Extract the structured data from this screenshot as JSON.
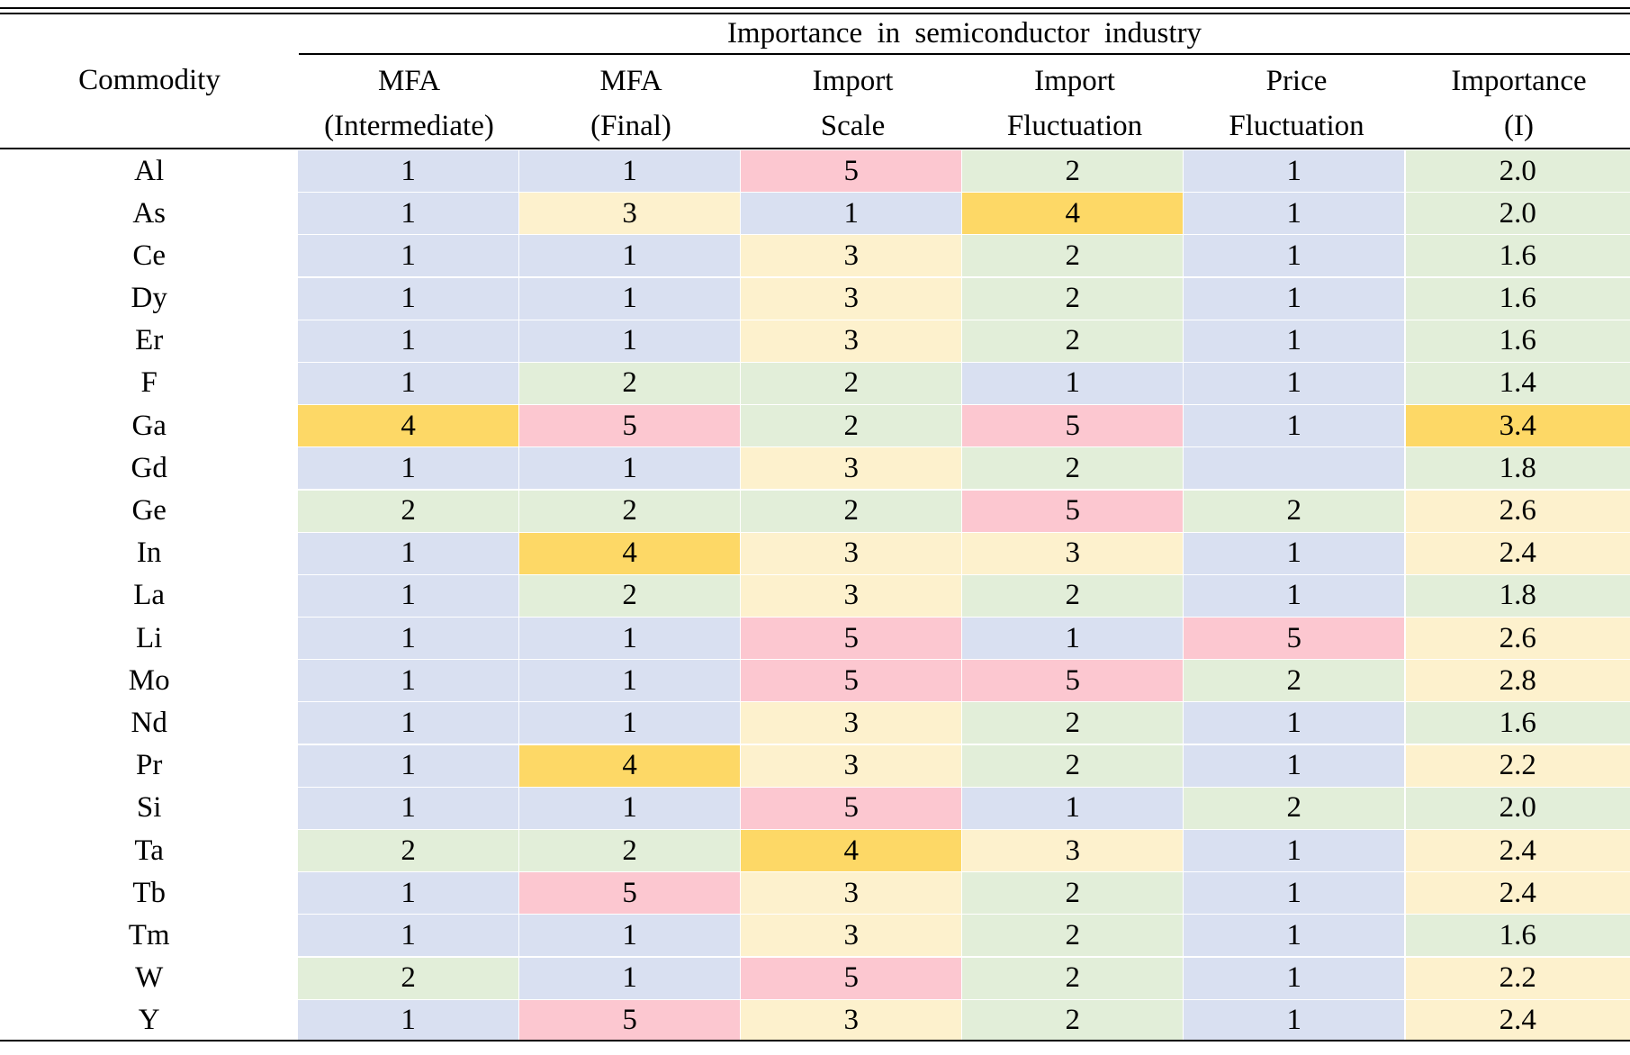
{
  "table": {
    "group_header": "Importance in semiconductor industry",
    "commodity_header": "Commodity",
    "columns": [
      {
        "line1": "MFA",
        "line2": "(Intermediate)"
      },
      {
        "line1": "MFA",
        "line2": "(Final)"
      },
      {
        "line1": "Import",
        "line2": "Scale"
      },
      {
        "line1": "Import",
        "line2": "Fluctuation"
      },
      {
        "line1": "Price",
        "line2": "Fluctuation"
      },
      {
        "line1": "Importance",
        "line2": "(I)"
      }
    ],
    "colors": {
      "1": "#d9e0f1",
      "2": "#e2eed9",
      "3": "#fdf1cd",
      "4": "#fdd866",
      "5": "#fcc7d0",
      "blank": "#d9e0f1"
    },
    "rows": [
      {
        "commodity": "Al",
        "values": [
          "1",
          "1",
          "5",
          "2",
          "1",
          "2.0"
        ],
        "levels": [
          1,
          1,
          5,
          2,
          1,
          2
        ]
      },
      {
        "commodity": "As",
        "values": [
          "1",
          "3",
          "1",
          "4",
          "1",
          "2.0"
        ],
        "levels": [
          1,
          3,
          1,
          4,
          1,
          2
        ]
      },
      {
        "commodity": "Ce",
        "values": [
          "1",
          "1",
          "3",
          "2",
          "1",
          "1.6"
        ],
        "levels": [
          1,
          1,
          3,
          2,
          1,
          2
        ]
      },
      {
        "commodity": "Dy",
        "values": [
          "1",
          "1",
          "3",
          "2",
          "1",
          "1.6"
        ],
        "levels": [
          1,
          1,
          3,
          2,
          1,
          2
        ]
      },
      {
        "commodity": "Er",
        "values": [
          "1",
          "1",
          "3",
          "2",
          "1",
          "1.6"
        ],
        "levels": [
          1,
          1,
          3,
          2,
          1,
          2
        ]
      },
      {
        "commodity": "F",
        "values": [
          "1",
          "2",
          "2",
          "1",
          "1",
          "1.4"
        ],
        "levels": [
          1,
          2,
          2,
          1,
          1,
          2
        ]
      },
      {
        "commodity": "Ga",
        "values": [
          "4",
          "5",
          "2",
          "5",
          "1",
          "3.4"
        ],
        "levels": [
          4,
          5,
          2,
          5,
          1,
          4
        ]
      },
      {
        "commodity": "Gd",
        "values": [
          "1",
          "1",
          "3",
          "2",
          "",
          "1.8"
        ],
        "levels": [
          1,
          1,
          3,
          2,
          "blank",
          2
        ]
      },
      {
        "commodity": "Ge",
        "values": [
          "2",
          "2",
          "2",
          "5",
          "2",
          "2.6"
        ],
        "levels": [
          2,
          2,
          2,
          5,
          2,
          3
        ]
      },
      {
        "commodity": "In",
        "values": [
          "1",
          "4",
          "3",
          "3",
          "1",
          "2.4"
        ],
        "levels": [
          1,
          4,
          3,
          3,
          1,
          3
        ]
      },
      {
        "commodity": "La",
        "values": [
          "1",
          "2",
          "3",
          "2",
          "1",
          "1.8"
        ],
        "levels": [
          1,
          2,
          3,
          2,
          1,
          2
        ]
      },
      {
        "commodity": "Li",
        "values": [
          "1",
          "1",
          "5",
          "1",
          "5",
          "2.6"
        ],
        "levels": [
          1,
          1,
          5,
          1,
          5,
          3
        ]
      },
      {
        "commodity": "Mo",
        "values": [
          "1",
          "1",
          "5",
          "5",
          "2",
          "2.8"
        ],
        "levels": [
          1,
          1,
          5,
          5,
          2,
          3
        ]
      },
      {
        "commodity": "Nd",
        "values": [
          "1",
          "1",
          "3",
          "2",
          "1",
          "1.6"
        ],
        "levels": [
          1,
          1,
          3,
          2,
          1,
          2
        ]
      },
      {
        "commodity": "Pr",
        "values": [
          "1",
          "4",
          "3",
          "2",
          "1",
          "2.2"
        ],
        "levels": [
          1,
          4,
          3,
          2,
          1,
          3
        ]
      },
      {
        "commodity": "Si",
        "values": [
          "1",
          "1",
          "5",
          "1",
          "2",
          "2.0"
        ],
        "levels": [
          1,
          1,
          5,
          1,
          2,
          2
        ]
      },
      {
        "commodity": "Ta",
        "values": [
          "2",
          "2",
          "4",
          "3",
          "1",
          "2.4"
        ],
        "levels": [
          2,
          2,
          4,
          3,
          1,
          3
        ]
      },
      {
        "commodity": "Tb",
        "values": [
          "1",
          "5",
          "3",
          "2",
          "1",
          "2.4"
        ],
        "levels": [
          1,
          5,
          3,
          2,
          1,
          3
        ]
      },
      {
        "commodity": "Tm",
        "values": [
          "1",
          "1",
          "3",
          "2",
          "1",
          "1.6"
        ],
        "levels": [
          1,
          1,
          3,
          2,
          1,
          2
        ]
      },
      {
        "commodity": "W",
        "values": [
          "2",
          "1",
          "5",
          "2",
          "1",
          "2.2"
        ],
        "levels": [
          2,
          1,
          5,
          2,
          1,
          3
        ]
      },
      {
        "commodity": "Y",
        "values": [
          "1",
          "5",
          "3",
          "2",
          "1",
          "2.4"
        ],
        "levels": [
          1,
          5,
          3,
          2,
          1,
          3
        ]
      }
    ]
  }
}
